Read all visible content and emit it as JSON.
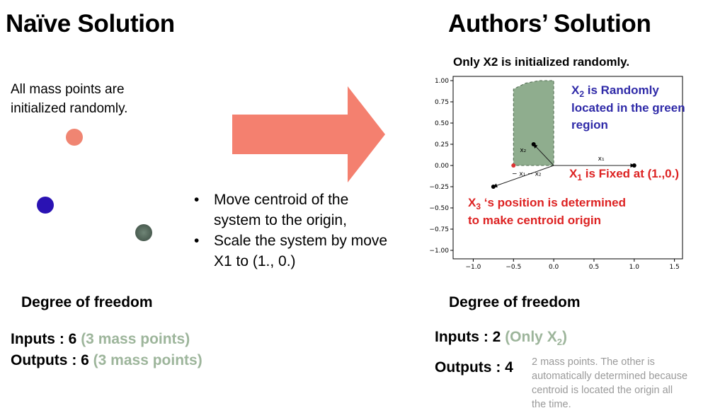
{
  "left": {
    "title": "Naïve Solution",
    "desc_line1": "All mass points are",
    "desc_line2": "initialized randomly.",
    "dof_heading": "Degree of freedom",
    "inputs_label": "Inputs : 6",
    "inputs_note": "(3 mass points)",
    "outputs_label": "Outputs : 6",
    "outputs_note": "(3 mass points)"
  },
  "middle": {
    "bullets": [
      {
        "line1": "Move centroid of the",
        "line2": "system to the origin,"
      },
      {
        "line1": "Scale the system by move",
        "line2": "X1 to (1., 0.)"
      }
    ]
  },
  "right": {
    "title": "Authors’ Solution",
    "subtitle": "Only X2 is initialized randomly.",
    "dof_heading": "Degree of freedom",
    "inputs_label": "Inputs : 2",
    "inputs_note_pre": "(Only X",
    "inputs_note_sub": "2",
    "inputs_note_post": ")",
    "outputs_label": "Outputs : 4",
    "outputs_note_lines": [
      "2 mass points. The other is",
      "automatically determined because",
      "centroid is located the origin all",
      "the time."
    ]
  },
  "chart_data": {
    "type": "scatter",
    "xlim": [
      -1.25,
      1.6
    ],
    "ylim": [
      -1.1,
      1.05
    ],
    "x_ticks": [
      -1.0,
      -0.5,
      0.0,
      0.5,
      1.0,
      1.5
    ],
    "x_tick_labels": [
      "−1.0",
      "−0.5",
      "0.0",
      "0.5",
      "1.0",
      "1.5"
    ],
    "y_ticks": [
      1.0,
      0.75,
      0.5,
      0.25,
      0.0,
      -0.25,
      -0.5,
      -0.75,
      -1.0
    ],
    "y_tick_labels": [
      "1.00",
      "0.75",
      "0.50",
      "0.25",
      "0.00",
      "−0.25",
      "−0.50",
      "−0.75",
      "−1.00"
    ],
    "points": [
      {
        "label": "X1",
        "x": 1.0,
        "y": 0.0
      },
      {
        "label": "X2",
        "x": -0.25,
        "y": 0.25
      },
      {
        "label": "X3",
        "x": -0.75,
        "y": -0.25
      },
      {
        "label": "origin",
        "x": -0.5,
        "y": 0.0
      }
    ],
    "vector_labels": {
      "x1": "x₁",
      "x2": "x₂",
      "x3": "− x₁ − x₂"
    },
    "annotations": {
      "x2_region_pre": "X",
      "x2_region_sub": "2",
      "x2_region_line1_post": " is Randomly",
      "x2_region_line2": "located in the green",
      "x2_region_line3": "region",
      "x1_fixed_pre": "X",
      "x1_fixed_sub": "1",
      "x1_fixed_post": " is Fixed at (1.,0.)",
      "x3_pre": "X",
      "x3_sub": "3",
      "x3_post": " ‘s position is determined",
      "x3_line2": "to make centroid origin"
    }
  },
  "colors": {
    "arrow": "#f4806f",
    "dot_salmon": "#f08572",
    "dot_blue": "#2a12b3",
    "dot_gray": "#4f6256",
    "region_fill": "#8fad8e",
    "muted_green": "#9db59b"
  }
}
